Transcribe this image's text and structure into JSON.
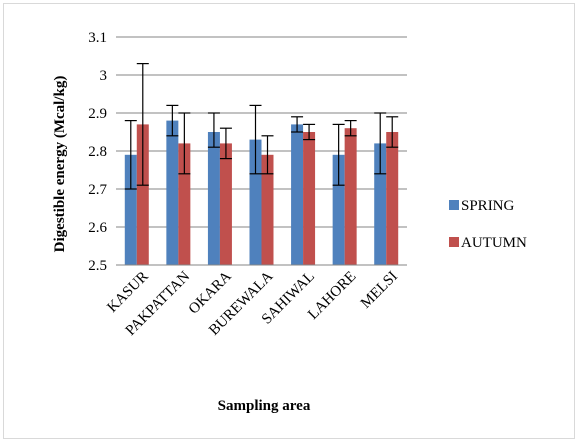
{
  "chart_data": {
    "type": "bar",
    "title": "",
    "xlabel": "Sampling area",
    "ylabel": "Digestible energy (Mcal/kg)",
    "ylim": [
      2.5,
      3.1
    ],
    "ytick_step": 0.1,
    "yticks": [
      "2.5",
      "2.6",
      "2.7",
      "2.8",
      "2.9",
      "3",
      "3.1"
    ],
    "grid": true,
    "legend_position": "right",
    "categories": [
      "KASUR",
      "PAKPATTAN",
      "OKARA",
      "BUREWALA",
      "SAHIWAL",
      "LAHORE",
      "MELSI"
    ],
    "series": [
      {
        "name": "SPRING",
        "color": "#4f81bd",
        "values": [
          2.79,
          2.88,
          2.85,
          2.83,
          2.87,
          2.79,
          2.82
        ],
        "error_low": [
          2.7,
          2.84,
          2.81,
          2.74,
          2.85,
          2.71,
          2.74
        ],
        "error_high": [
          2.88,
          2.92,
          2.9,
          2.92,
          2.89,
          2.87,
          2.9
        ]
      },
      {
        "name": "AUTUMN",
        "color": "#c0504d",
        "values": [
          2.87,
          2.82,
          2.82,
          2.79,
          2.85,
          2.86,
          2.85
        ],
        "error_low": [
          2.71,
          2.74,
          2.78,
          2.74,
          2.83,
          2.84,
          2.81
        ],
        "error_high": [
          3.03,
          2.9,
          2.86,
          2.84,
          2.87,
          2.88,
          2.89
        ]
      }
    ]
  }
}
